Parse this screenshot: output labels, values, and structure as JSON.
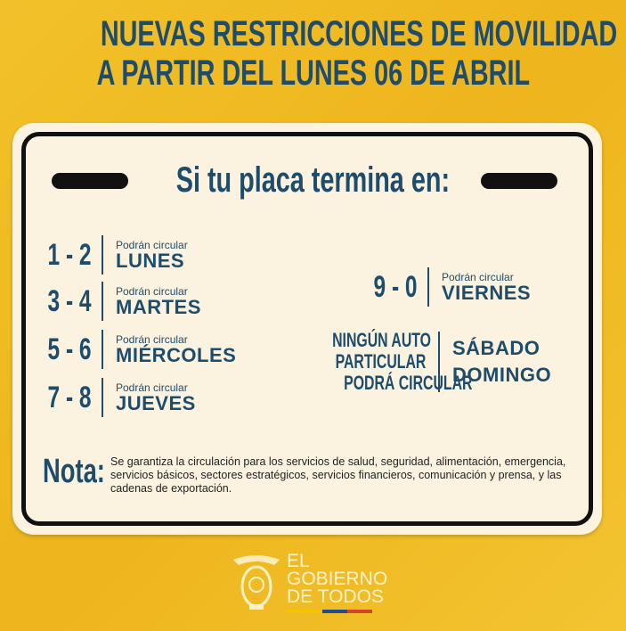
{
  "title": {
    "line1": "NUEVAS RESTRICCIONES DE MOVILIDAD",
    "line2": "A PARTIR DEL LUNES 06 DE ABRIL"
  },
  "subtitle": "Si tu placa termina en:",
  "left_rows": [
    {
      "digits": "1 - 2",
      "label": "Podrán circular",
      "day": "LUNES"
    },
    {
      "digits": "3 - 4",
      "label": "Podrán circular",
      "day": "MARTES"
    },
    {
      "digits": "5 - 6",
      "label": "Podrán circular",
      "day": "MIÉRCOLES"
    },
    {
      "digits": "7 - 8",
      "label": "Podrán circular",
      "day": "JUEVES"
    }
  ],
  "right_row": {
    "digits": "9 - 0",
    "label": "Podrán circular",
    "day": "VIERNES"
  },
  "weekend": {
    "line1": "NINGÚN AUTO",
    "line2": "PARTICULAR",
    "line3": "PODRÁ CIRCULAR",
    "day1": "SÁBADO",
    "day2": "DOMINGO"
  },
  "nota": {
    "label": "Nota:",
    "text": "Se garantiza la circulación para los servicios de salud,  seguridad, alimentación, emergencia, servicios básicos, sectores estratégicos, servicios financieros, comunicación y prensa, y las cadenas de exportación."
  },
  "logo": {
    "line1": "EL",
    "line2": "GOBIERNO",
    "line3": "DE TODOS",
    "icon": "ecuador-coat-of-arms-icon"
  },
  "colors": {
    "background": "#eeb51c",
    "text": "#1d4c6d",
    "card": "#fbf3e0",
    "flag": [
      "#f5c400",
      "#1f4e8c",
      "#d2452a"
    ]
  }
}
